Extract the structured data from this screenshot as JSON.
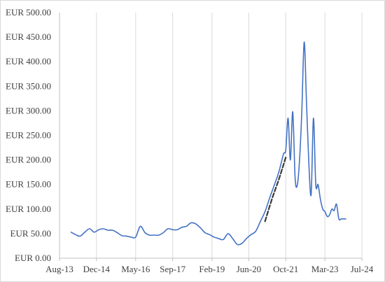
{
  "chart_data": {
    "type": "line",
    "title": "",
    "xlabel": "",
    "ylabel": "",
    "ylim": [
      0,
      500
    ],
    "xlim": [
      "2013-08-01",
      "2024-07-01"
    ],
    "y_ticks": [
      0,
      50,
      100,
      150,
      200,
      250,
      300,
      350,
      400,
      450,
      500
    ],
    "y_tick_labels": [
      "EUR 0.00",
      "EUR 50.00",
      "EUR 100.00",
      "EUR 150.00",
      "EUR 200.00",
      "EUR 250.00",
      "EUR 300.00",
      "EUR 350.00",
      "EUR 400.00",
      "EUR 450.00",
      "EUR 500.00"
    ],
    "x_ticks": [
      "2013-08-01",
      "2014-12-01",
      "2016-05-01",
      "2017-09-01",
      "2019-02-01",
      "2020-06-01",
      "2021-10-01",
      "2023-03-01",
      "2024-07-01"
    ],
    "x_tick_labels": [
      "Aug-13",
      "Dec-14",
      "May-16",
      "Sep-17",
      "Feb-19",
      "Jun-20",
      "Oct-21",
      "Mar-23",
      "Jul-24"
    ],
    "grid": {
      "vertical": true,
      "horizontal": false
    },
    "legend": "none",
    "colors": {
      "series": "#4472c4",
      "trend": "#3a3a3a",
      "grid": "#d9d9d9",
      "axis": "#bfbfbf"
    },
    "series": [
      {
        "style": "solid",
        "x": [
          "2014-01-01",
          "2014-03-01",
          "2014-05-01",
          "2014-07-01",
          "2014-09-01",
          "2014-11-01",
          "2015-01-01",
          "2015-03-01",
          "2015-05-01",
          "2015-07-01",
          "2015-09-01",
          "2015-11-01",
          "2016-01-01",
          "2016-03-01",
          "2016-05-01",
          "2016-07-01",
          "2016-09-01",
          "2016-11-01",
          "2017-01-01",
          "2017-03-01",
          "2017-05-01",
          "2017-07-01",
          "2017-09-01",
          "2017-11-01",
          "2018-01-01",
          "2018-03-01",
          "2018-05-01",
          "2018-07-01",
          "2018-09-01",
          "2018-11-01",
          "2019-01-01",
          "2019-03-01",
          "2019-05-01",
          "2019-07-01",
          "2019-09-01",
          "2019-11-01",
          "2020-01-01",
          "2020-03-01",
          "2020-05-01",
          "2020-07-01",
          "2020-09-01",
          "2020-11-01",
          "2021-01-01",
          "2021-03-01",
          "2021-05-01",
          "2021-07-01",
          "2021-09-01",
          "2021-10-01",
          "2021-11-01",
          "2021-12-01",
          "2022-01-01",
          "2022-02-01",
          "2022-03-01",
          "2022-04-01",
          "2022-05-01",
          "2022-06-01",
          "2022-07-01",
          "2022-08-01",
          "2022-09-01",
          "2022-10-01",
          "2022-11-01",
          "2022-12-01",
          "2023-01-01",
          "2023-02-01",
          "2023-03-01",
          "2023-04-01",
          "2023-05-01",
          "2023-06-01",
          "2023-07-01",
          "2023-08-01",
          "2023-09-01",
          "2023-10-01",
          "2023-11-01",
          "2023-12-01"
        ],
        "y": [
          53,
          48,
          45,
          53,
          60,
          53,
          58,
          60,
          57,
          57,
          52,
          46,
          45,
          43,
          43,
          65,
          52,
          47,
          47,
          47,
          52,
          60,
          58,
          58,
          63,
          65,
          72,
          70,
          62,
          52,
          48,
          43,
          40,
          38,
          50,
          40,
          28,
          30,
          40,
          48,
          55,
          75,
          95,
          122,
          148,
          175,
          212,
          220,
          285,
          200,
          298,
          165,
          148,
          200,
          300,
          440,
          320,
          195,
          130,
          285,
          150,
          150,
          120,
          100,
          95,
          85,
          88,
          100,
          97,
          110,
          80,
          80,
          80,
          80
        ]
      },
      {
        "style": "dashed",
        "x": [
          "2021-01-01",
          "2021-04-01",
          "2021-07-01",
          "2021-10-01"
        ],
        "y": [
          75,
          120,
          160,
          205
        ]
      }
    ]
  }
}
